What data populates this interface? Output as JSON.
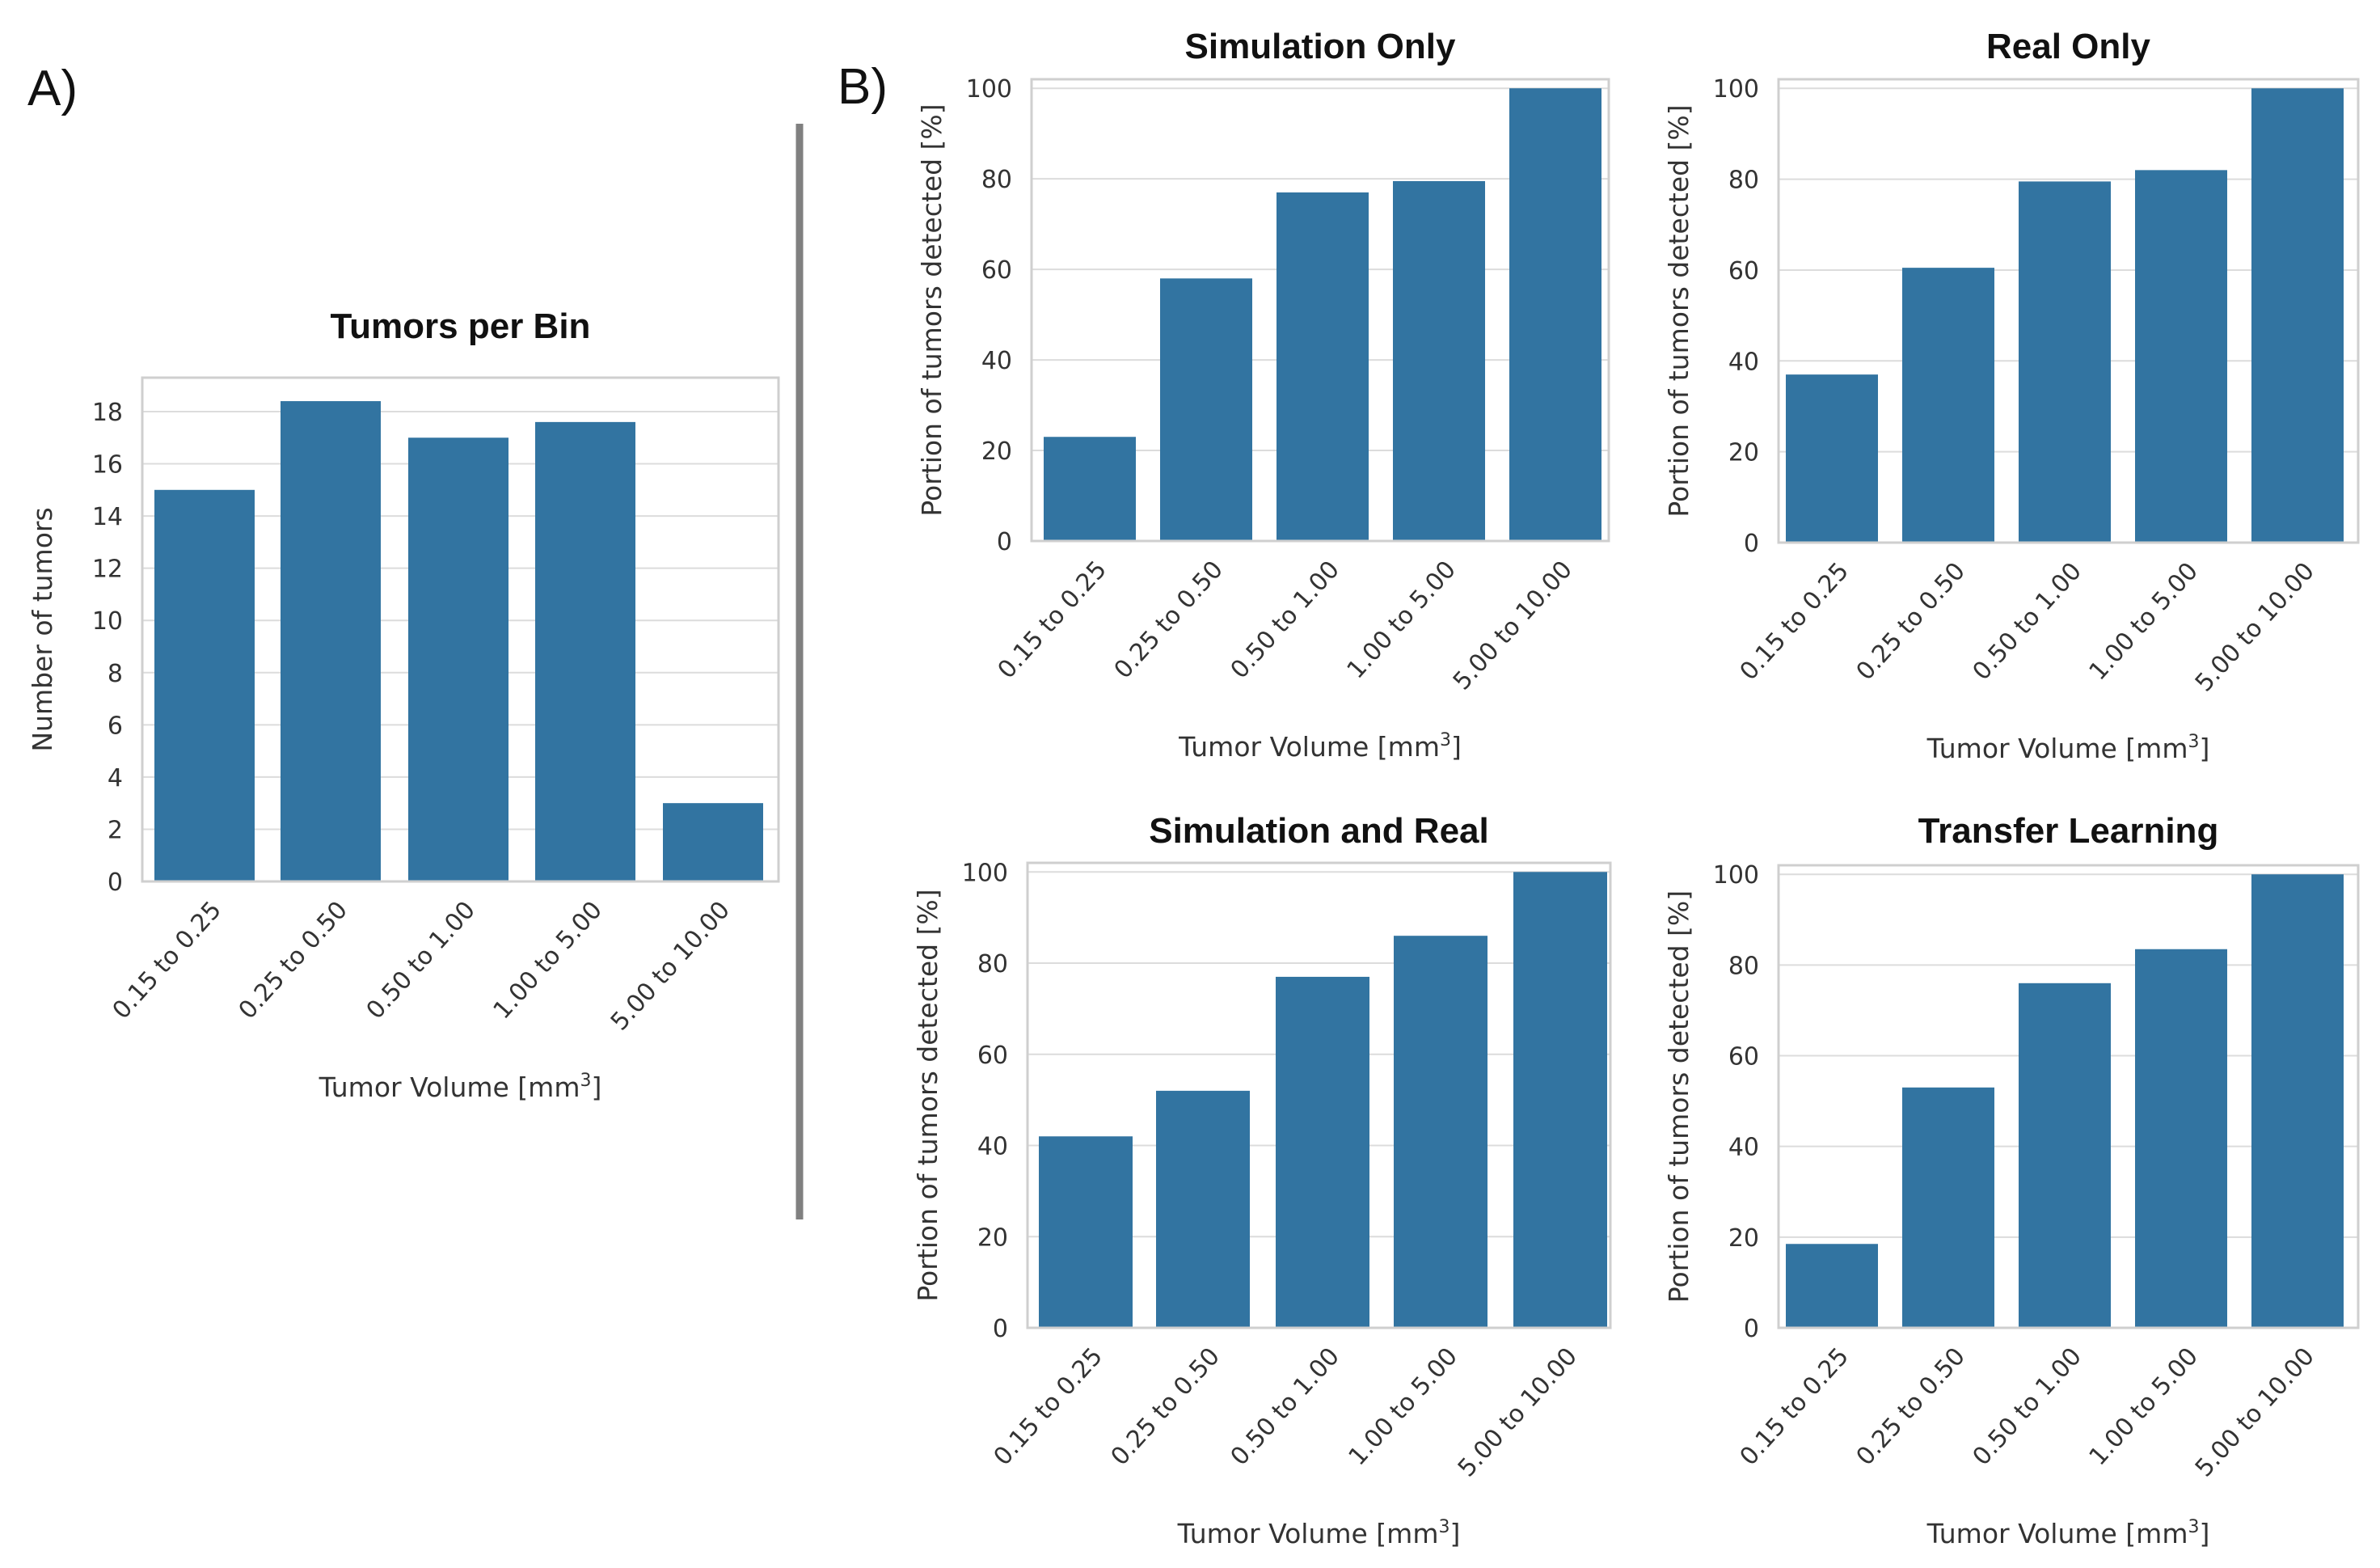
{
  "panel_labels": {
    "a": "A)",
    "b": "B)"
  },
  "colors": {
    "bar": "#3274a1"
  },
  "chart_data": [
    {
      "id": "A",
      "type": "bar",
      "title": "Tumors per Bin",
      "xlabel": "Tumor Volume [mm³]",
      "ylabel": "Number of tumors",
      "categories": [
        "0.15 to 0.25",
        "0.25 to 0.50",
        "0.50 to 1.00",
        "1.00 to 5.00",
        "5.00 to 10.00"
      ],
      "values": [
        15,
        18.4,
        17,
        17.6,
        3
      ],
      "ylim": [
        0,
        19.3
      ],
      "yticks": [
        0,
        2,
        4,
        6,
        8,
        10,
        12,
        14,
        16,
        18
      ],
      "grid": true
    },
    {
      "id": "B1",
      "type": "bar",
      "title": "Simulation Only",
      "xlabel": "Tumor Volume [mm³]",
      "ylabel": "Portion of tumors detected [%]",
      "categories": [
        "0.15 to 0.25",
        "0.25 to 0.50",
        "0.50 to 1.00",
        "1.00 to 5.00",
        "5.00 to 10.00"
      ],
      "values": [
        23,
        58,
        77,
        79.5,
        100
      ],
      "ylim": [
        0,
        102
      ],
      "yticks": [
        0,
        20,
        40,
        60,
        80,
        100
      ],
      "grid": true
    },
    {
      "id": "B2",
      "type": "bar",
      "title": "Real Only",
      "xlabel": "Tumor Volume [mm³]",
      "ylabel": "Portion of tumors detected [%]",
      "categories": [
        "0.15 to 0.25",
        "0.25 to 0.50",
        "0.50 to 1.00",
        "1.00 to 5.00",
        "5.00 to 10.00"
      ],
      "values": [
        37,
        60.5,
        79.5,
        82,
        100
      ],
      "ylim": [
        0,
        102
      ],
      "yticks": [
        0,
        20,
        40,
        60,
        80,
        100
      ],
      "grid": true
    },
    {
      "id": "B3",
      "type": "bar",
      "title": "Simulation and Real",
      "xlabel": "Tumor Volume [mm³]",
      "ylabel": "Portion of tumors detected [%]",
      "categories": [
        "0.15 to 0.25",
        "0.25 to 0.50",
        "0.50 to 1.00",
        "1.00 to 5.00",
        "5.00 to 10.00"
      ],
      "values": [
        42,
        52,
        77,
        86,
        100
      ],
      "ylim": [
        0,
        102
      ],
      "yticks": [
        0,
        20,
        40,
        60,
        80,
        100
      ],
      "grid": true
    },
    {
      "id": "B4",
      "type": "bar",
      "title": "Transfer Learning",
      "xlabel": "Tumor Volume [mm³]",
      "ylabel": "Portion of tumors detected [%]",
      "categories": [
        "0.15 to 0.25",
        "0.25 to 0.50",
        "0.50 to 1.00",
        "1.00 to 5.00",
        "5.00 to 10.00"
      ],
      "values": [
        18.5,
        53,
        76,
        83.5,
        100
      ],
      "ylim": [
        0,
        102
      ],
      "yticks": [
        0,
        20,
        40,
        60,
        80,
        100
      ],
      "grid": true
    }
  ]
}
